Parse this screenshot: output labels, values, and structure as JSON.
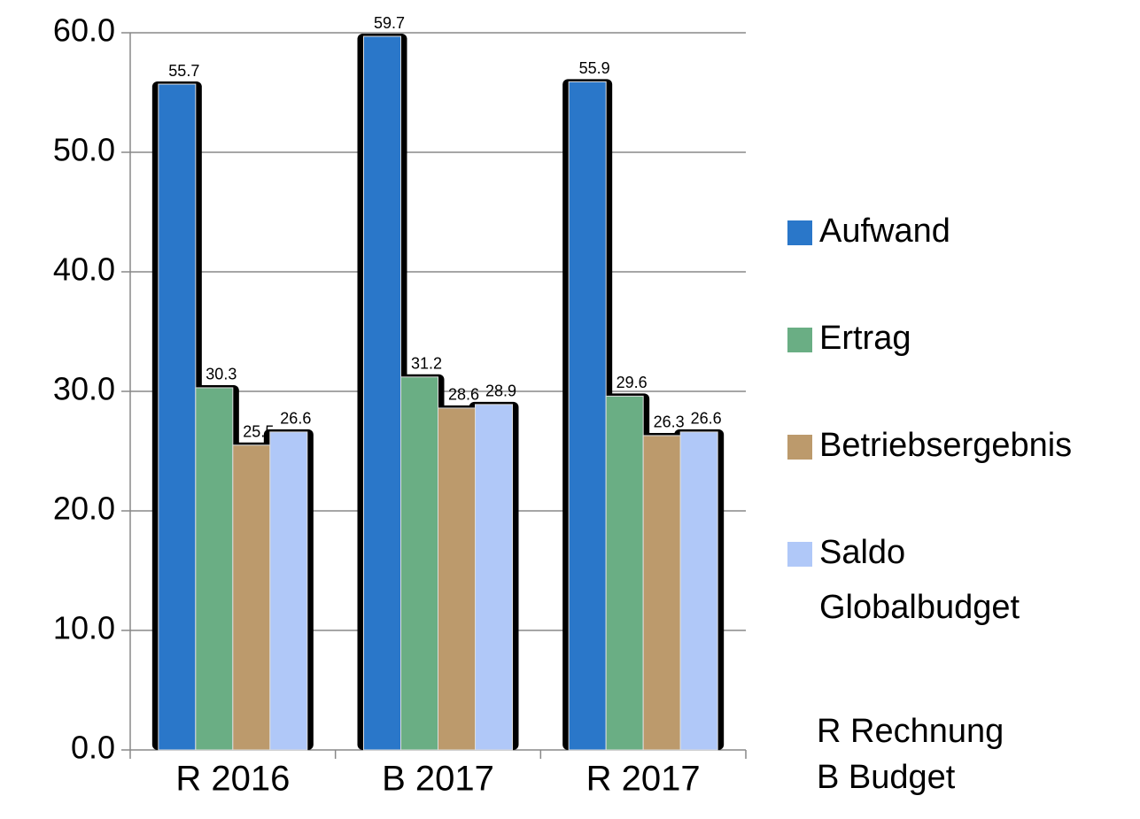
{
  "chart_data": {
    "type": "bar",
    "categories": [
      "R 2016",
      "B 2017",
      "R 2017"
    ],
    "series": [
      {
        "name": "Aufwand",
        "color": "#2a77c9",
        "values": [
          55.7,
          59.7,
          55.9
        ]
      },
      {
        "name": "Ertrag",
        "color": "#6aae84",
        "values": [
          30.3,
          31.2,
          29.6
        ]
      },
      {
        "name": "Betriebsergebnis",
        "color": "#bc9a6c",
        "values": [
          25.5,
          28.6,
          26.3
        ]
      },
      {
        "name": "Saldo Globalbudget",
        "color": "#b0c8f8",
        "values": [
          26.6,
          28.9,
          26.6
        ]
      }
    ],
    "ylim": [
      0,
      60
    ],
    "yticks": [
      {
        "value": 0,
        "label": "0.0"
      },
      {
        "value": 10,
        "label": "10.0"
      },
      {
        "value": 20,
        "label": "20.0"
      },
      {
        "value": 30,
        "label": "30.0"
      },
      {
        "value": 40,
        "label": "40.0"
      },
      {
        "value": 50,
        "label": "50.0"
      },
      {
        "value": 60,
        "label": "60.0"
      }
    ],
    "grid": true,
    "legend": "right",
    "annotations": [
      "R Rechnung",
      "B Budget"
    ]
  }
}
